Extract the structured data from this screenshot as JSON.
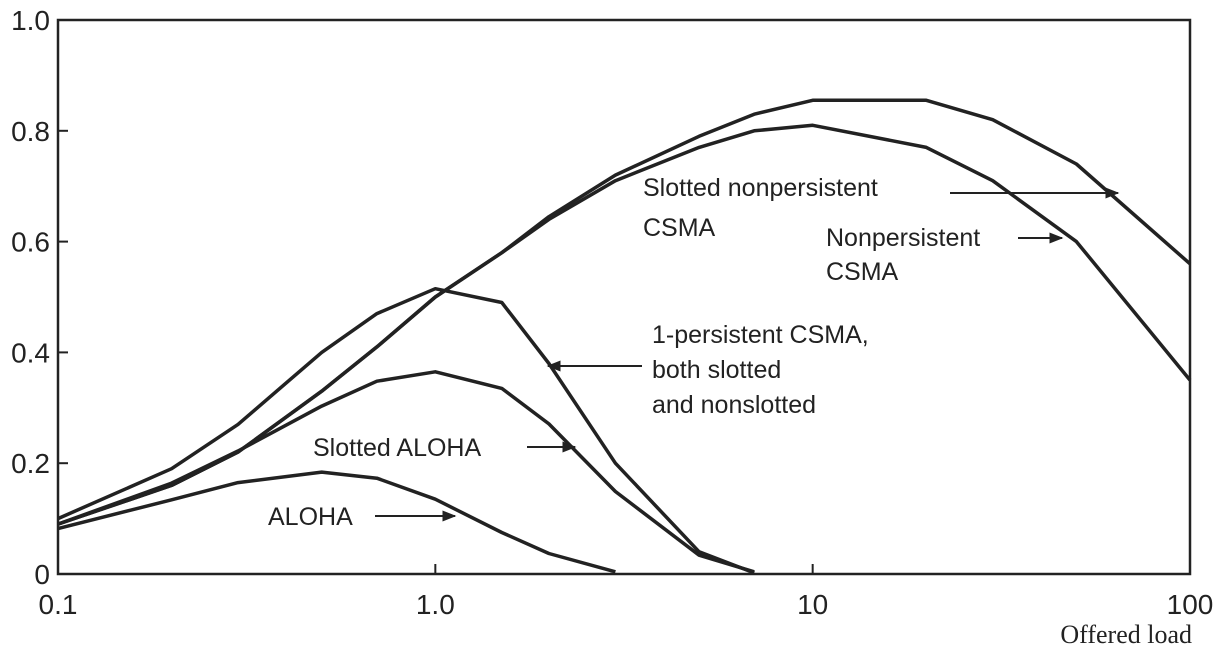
{
  "chart_data": {
    "type": "line",
    "xlabel": "Offered load",
    "xscale": "log",
    "x": [
      0.1,
      0.2,
      0.3,
      0.5,
      0.7,
      1,
      1.5,
      2,
      3,
      5,
      7,
      10,
      20,
      30,
      50,
      100
    ],
    "series": [
      {
        "name": "ALOHA",
        "color": "#222222",
        "values": [
          0.082,
          0.134,
          0.165,
          0.184,
          0.173,
          0.135,
          0.075,
          0.037,
          0.004,
          null,
          null,
          null,
          null,
          null,
          null,
          null
        ]
      },
      {
        "name": "Slotted ALOHA",
        "color": "#222222",
        "values": [
          0.09,
          0.164,
          0.222,
          0.303,
          0.348,
          0.365,
          0.335,
          0.271,
          0.149,
          0.034,
          0.004,
          null,
          null,
          null,
          null,
          null
        ]
      },
      {
        "name": "1-persistent CSMA, both slotted and nonslotted",
        "color": "#222222",
        "values": [
          0.1,
          0.19,
          0.27,
          0.4,
          0.47,
          0.515,
          0.49,
          0.38,
          0.2,
          0.04,
          0.002,
          null,
          null,
          null,
          null,
          null
        ]
      },
      {
        "name": "Nonpersistent CSMA",
        "color": "#222222",
        "values": [
          0.09,
          0.16,
          0.22,
          0.33,
          0.41,
          0.5,
          0.58,
          0.64,
          0.71,
          0.77,
          0.8,
          0.81,
          0.77,
          0.71,
          0.6,
          0.35
        ]
      },
      {
        "name": "Slotted nonpersistent CSMA",
        "color": "#222222",
        "values": [
          0.09,
          0.16,
          0.22,
          0.33,
          0.41,
          0.5,
          0.58,
          0.645,
          0.72,
          0.79,
          0.83,
          0.855,
          0.855,
          0.82,
          0.74,
          0.56
        ]
      }
    ],
    "annotations": [
      {
        "lines": [
          "Slotted nonpersistent",
          "CSMA"
        ]
      },
      {
        "lines": [
          "Nonpersistent",
          "CSMA"
        ]
      },
      {
        "lines": [
          "1-persistent CSMA,",
          "both slotted",
          "and nonslotted"
        ]
      },
      {
        "lines": [
          "Slotted ALOHA"
        ]
      },
      {
        "lines": [
          "ALOHA"
        ]
      }
    ],
    "xlim": [
      0.1,
      100
    ],
    "xticks": [
      0.1,
      {
        "value": 1,
        "label": "1.0"
      },
      10,
      100
    ],
    "ylim": [
      0,
      1
    ],
    "yticks": [
      0,
      0.2,
      0.4,
      0.6,
      0.8,
      {
        "value": 1,
        "label": "1.0"
      }
    ]
  }
}
